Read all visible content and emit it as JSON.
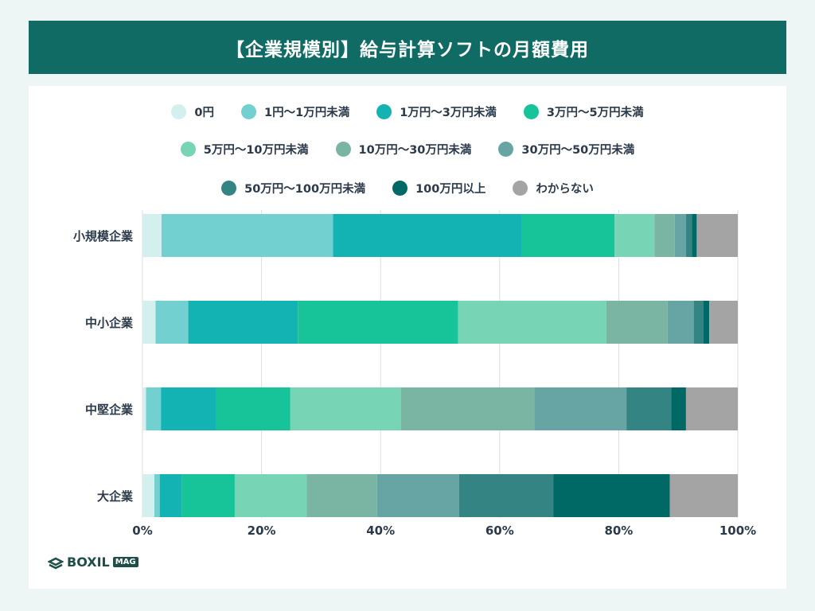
{
  "chart_data": {
    "type": "bar",
    "orientation": "horizontal",
    "stacked": true,
    "title": "【企業規模別】給与計算ソフトの月額費用",
    "categories": [
      "小規模企業",
      "中小企業",
      "中堅企業",
      "大企業"
    ],
    "xlim": [
      0,
      100
    ],
    "x_ticks": [
      "0%",
      "20%",
      "40%",
      "60%",
      "80%",
      "100%"
    ],
    "grid": true,
    "legend_position": "top",
    "series": [
      {
        "name": "0円",
        "color": "#d3f0ee",
        "values": [
          3.2,
          2.2,
          0.6,
          2.0
        ]
      },
      {
        "name": "1円〜1万円未満",
        "color": "#72d0d0",
        "values": [
          28.8,
          5.5,
          2.5,
          0.9
        ]
      },
      {
        "name": "1万円〜3万円未満",
        "color": "#13b3b3",
        "values": [
          31.7,
          18.4,
          9.2,
          3.7
        ]
      },
      {
        "name": "3万円〜5万円未満",
        "color": "#17c499",
        "values": [
          15.6,
          26.9,
          12.5,
          8.9
        ]
      },
      {
        "name": "5万円〜10万円未満",
        "color": "#77d4b4",
        "values": [
          6.7,
          24.9,
          18.6,
          12.1
        ]
      },
      {
        "name": "10万円〜30万円未満",
        "color": "#7ab5a4",
        "values": [
          3.4,
          10.3,
          22.4,
          11.8
        ]
      },
      {
        "name": "30万円〜50万円未満",
        "color": "#66a5a3",
        "values": [
          1.9,
          4.4,
          15.5,
          13.8
        ]
      },
      {
        "name": "50万円〜100万円未満",
        "color": "#348484",
        "values": [
          1.0,
          1.6,
          7.5,
          15.8
        ]
      },
      {
        "name": "100万円以上",
        "color": "#006966",
        "values": [
          0.8,
          1.0,
          2.5,
          19.6
        ]
      },
      {
        "name": "わからない",
        "color": "#a4a4a4",
        "values": [
          6.9,
          4.8,
          8.7,
          11.4
        ]
      }
    ]
  },
  "logo": {
    "text": "BOXIL",
    "badge": "MAG"
  }
}
